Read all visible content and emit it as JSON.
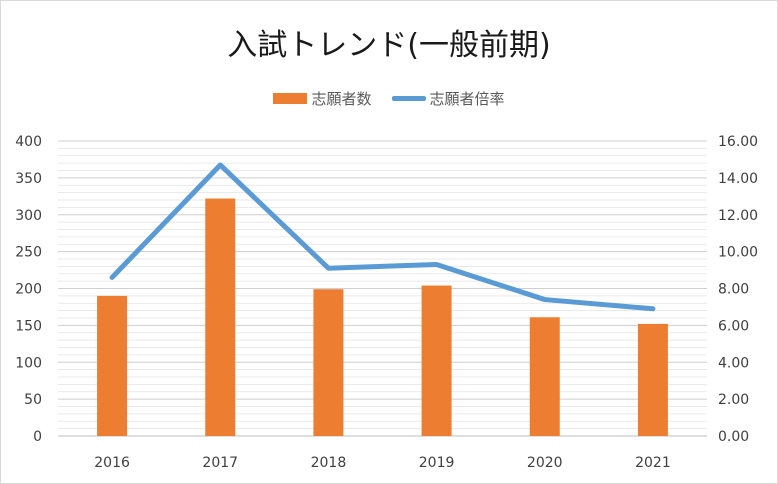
{
  "chart_data": {
    "type": "bar",
    "title": "入試トレンド(一般前期)",
    "categories": [
      "2016",
      "2017",
      "2018",
      "2019",
      "2020",
      "2021"
    ],
    "series": [
      {
        "name": "志願者数",
        "type": "bar",
        "axis": "left",
        "color": "#ed7d31",
        "values": [
          190,
          322,
          199,
          204,
          161,
          152
        ]
      },
      {
        "name": "志願者倍率",
        "type": "line",
        "axis": "right",
        "color": "#5b9bd5",
        "values": [
          8.6,
          14.7,
          9.1,
          9.3,
          7.4,
          6.9
        ]
      }
    ],
    "y_left": {
      "min": 0,
      "max": 400,
      "ticks": [
        "0",
        "50",
        "100",
        "150",
        "200",
        "250",
        "300",
        "350",
        "400"
      ]
    },
    "y_right": {
      "min": 0,
      "max": 16,
      "ticks": [
        "0.00",
        "2.00",
        "4.00",
        "6.00",
        "8.00",
        "10.00",
        "12.00",
        "14.00",
        "16.00"
      ]
    },
    "grid": true,
    "legend_position": "top"
  }
}
